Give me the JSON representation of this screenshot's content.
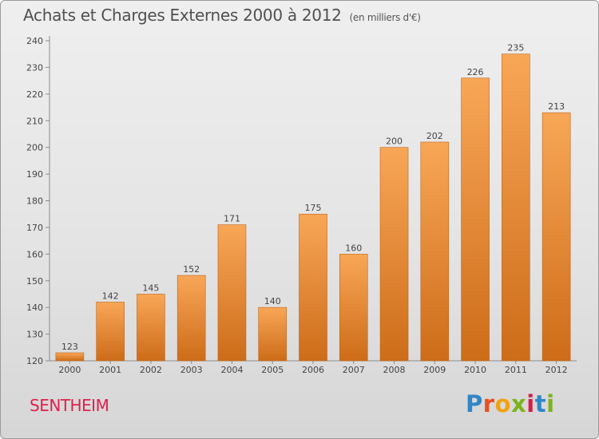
{
  "header": {
    "title": "Achats et Charges Externes 2000 à 2012",
    "unit": "(en milliers d'€)"
  },
  "footer": {
    "commune": "SENTHEIM",
    "logo_letters": [
      "P",
      "r",
      "o",
      "x",
      "i",
      "t",
      "i"
    ],
    "logo_colors": [
      "#2f86c8",
      "#e94e1b",
      "#f2a20f",
      "#7bb31c",
      "#d51e4a",
      "#2f86c8",
      "#7bb31c"
    ]
  },
  "chart_data": {
    "type": "bar",
    "categories": [
      "2000",
      "2001",
      "2002",
      "2003",
      "2004",
      "2005",
      "2006",
      "2007",
      "2008",
      "2009",
      "2010",
      "2011",
      "2012"
    ],
    "values": [
      123,
      142,
      145,
      152,
      171,
      140,
      175,
      160,
      200,
      202,
      226,
      235,
      213
    ],
    "ylim": [
      120,
      240
    ],
    "yticks": [
      120,
      130,
      140,
      150,
      160,
      170,
      180,
      190,
      200,
      210,
      220,
      230,
      240
    ],
    "grid": false,
    "colors": {
      "bar_top": "#f8a757",
      "bar_bottom": "#cd6c19",
      "bar_edge": "#c0651a"
    }
  }
}
